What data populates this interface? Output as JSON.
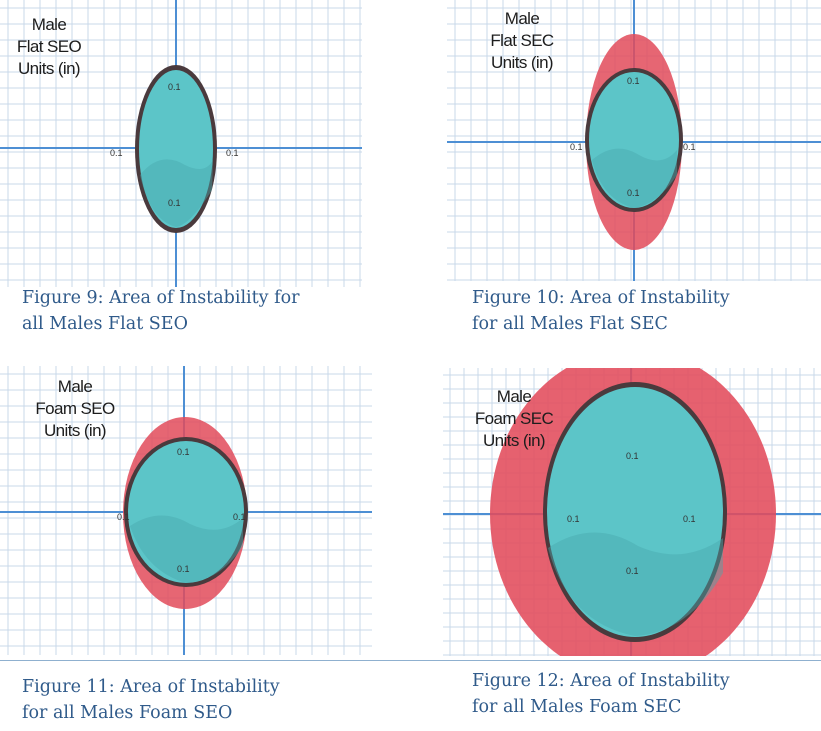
{
  "panels": [
    {
      "id": "fig9",
      "label": [
        "Male",
        "Flat SEO",
        "Units (in)"
      ],
      "tick": "0.1",
      "caption": [
        "Figure 9: Area of Instability for",
        "all Males Flat SEO"
      ],
      "has_outer_ellipse": false,
      "outer_color": "#e24b5b",
      "inner_color": "#5cc5c8"
    },
    {
      "id": "fig10",
      "label": [
        "Male",
        "Flat SEC",
        "Units (in)"
      ],
      "tick": "0.1",
      "caption": [
        "Figure 10: Area of Instability",
        "for all Males Flat SEC"
      ],
      "has_outer_ellipse": true,
      "outer_color": "#e24b5b",
      "inner_color": "#5cc5c8"
    },
    {
      "id": "fig11",
      "label": [
        "Male",
        "Foam SEO",
        "Units (in)"
      ],
      "tick": "0.1",
      "caption": [
        "Figure 11: Area of Instability",
        "for all Males Foam SEO"
      ],
      "has_outer_ellipse": true,
      "outer_color": "#e24b5b",
      "inner_color": "#5cc5c8"
    },
    {
      "id": "fig12",
      "label": [
        "Male",
        "Foam SEC",
        "Units (in)"
      ],
      "tick": "0.1",
      "caption": [
        "Figure 12: Area of Instability",
        "for all Males Foam SEC"
      ],
      "has_outer_ellipse": true,
      "outer_color": "#e24b5b",
      "inner_color": "#5cc5c8"
    }
  ],
  "colors": {
    "grid_minor": "#c9d8ea",
    "grid_major": "#4d8fd4",
    "caption": "#2f5a8a",
    "outline": "#4a3a3d"
  }
}
